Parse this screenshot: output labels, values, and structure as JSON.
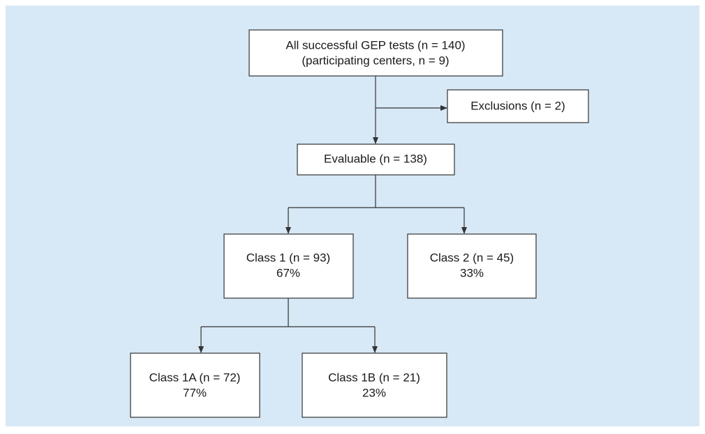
{
  "nodes": [
    {
      "lines": [
        "All successful GEP tests (n = 140)",
        "(participating centers, n = 9)"
      ]
    },
    {
      "lines": [
        "Exclusions (n = 2)"
      ]
    },
    {
      "lines": [
        "Evaluable (n = 138)"
      ]
    },
    {
      "lines": [
        "Class 1 (n = 93)",
        "67%"
      ]
    },
    {
      "lines": [
        "Class 2 (n = 45)",
        "33%"
      ]
    },
    {
      "lines": [
        "Class 1A (n = 72)",
        "77%"
      ]
    },
    {
      "lines": [
        "Class 1B (n = 21)",
        "23%"
      ]
    }
  ]
}
